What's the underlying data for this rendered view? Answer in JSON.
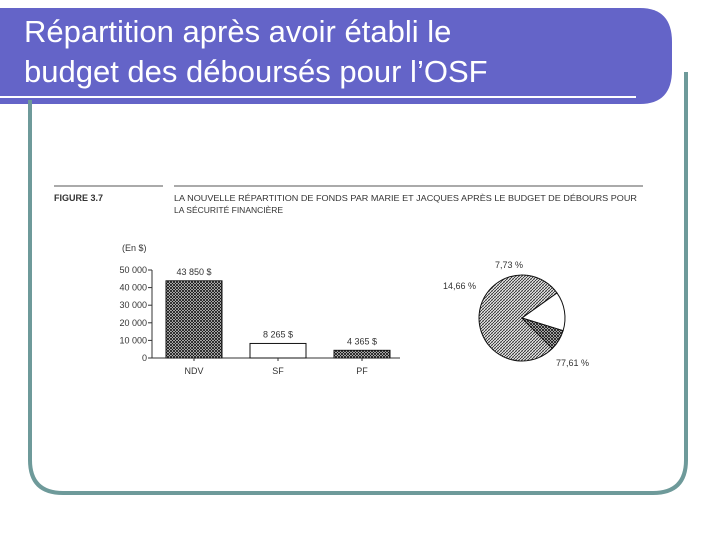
{
  "slide": {
    "title_line1": "Répartition après avoir établi le",
    "title_line2": "budget des déboursés pour l’OSF",
    "colors": {
      "title_band": "#6464c8",
      "frame_border": "#6e9a9a"
    }
  },
  "figure": {
    "label": "FIGURE 3.7",
    "caption_line1": "LA NOUVELLE RÉPARTITION DE FONDS PAR MARIE ET JACQUES APRÈS LE BUDGET DE DÉBOURS POUR",
    "caption_line2": "LA SÉCURITÉ FINANCIÈRE"
  },
  "chart_data": [
    {
      "type": "bar",
      "ylabel": "(En $)",
      "ylim": [
        0,
        50000
      ],
      "yticks": [
        0,
        10000,
        20000,
        30000,
        40000,
        50000
      ],
      "ytick_labels": [
        "0",
        "10 000",
        "20 000",
        "30 000",
        "40 000",
        "50 000"
      ],
      "categories": [
        "NDV",
        "SF",
        "PF"
      ],
      "values": [
        43850,
        8265,
        4365
      ],
      "data_labels": [
        "43 850 $",
        "8 265 $",
        "4 365 $"
      ],
      "patterns": [
        "crosshatch",
        "white",
        "crosshatch"
      ]
    },
    {
      "type": "pie",
      "slices": [
        {
          "value": 77.61,
          "label": "77,61 %",
          "pattern": "dense-hatch"
        },
        {
          "value": 14.66,
          "label": "14,66 %",
          "pattern": "white"
        },
        {
          "value": 7.73,
          "label": "7,73 %",
          "pattern": "crosshatch"
        }
      ]
    }
  ]
}
